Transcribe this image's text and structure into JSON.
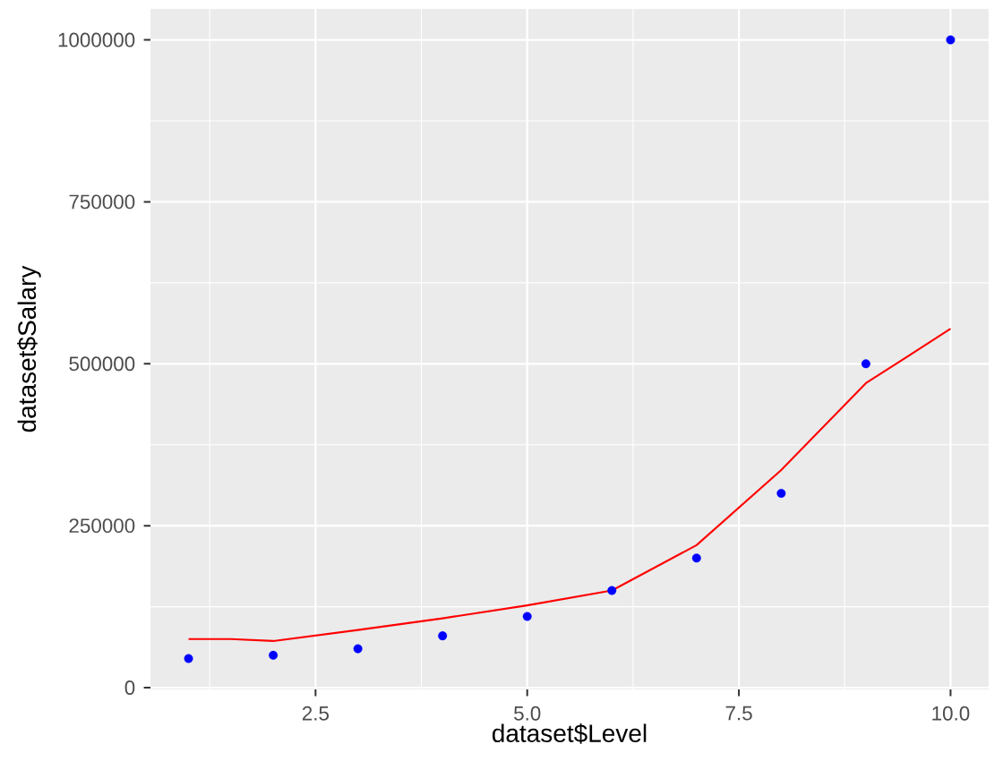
{
  "chart_data": {
    "type": "scatter",
    "xlabel": "dataset$Level",
    "ylabel": "dataset$Salary",
    "xlim": [
      0.55,
      10.45
    ],
    "ylim": [
      -2750,
      1047750
    ],
    "xticks": [
      2.5,
      {
        "value": 5,
        "label": "5.0"
      },
      7.5,
      {
        "value": 10,
        "label": "10.0"
      }
    ],
    "yticks": [
      0,
      250000,
      500000,
      750000,
      1000000
    ],
    "grid": true,
    "series": [
      {
        "color": "#0000ff",
        "marker": "circle",
        "x": [
          1,
          2,
          3,
          4,
          5,
          6,
          7,
          8,
          9,
          10
        ],
        "values": [
          45000,
          50000,
          60000,
          80000,
          110000,
          150000,
          200000,
          300000,
          500000,
          1000000
        ]
      },
      {
        "type": "line",
        "color": "#ff0000",
        "x": [
          1,
          1.5,
          2,
          3,
          4,
          5,
          6,
          7,
          8,
          9,
          10
        ],
        "values": [
          75000,
          75000,
          72000,
          89000,
          107000,
          127000,
          150000,
          220000,
          336000,
          470000,
          554000
        ]
      }
    ]
  }
}
